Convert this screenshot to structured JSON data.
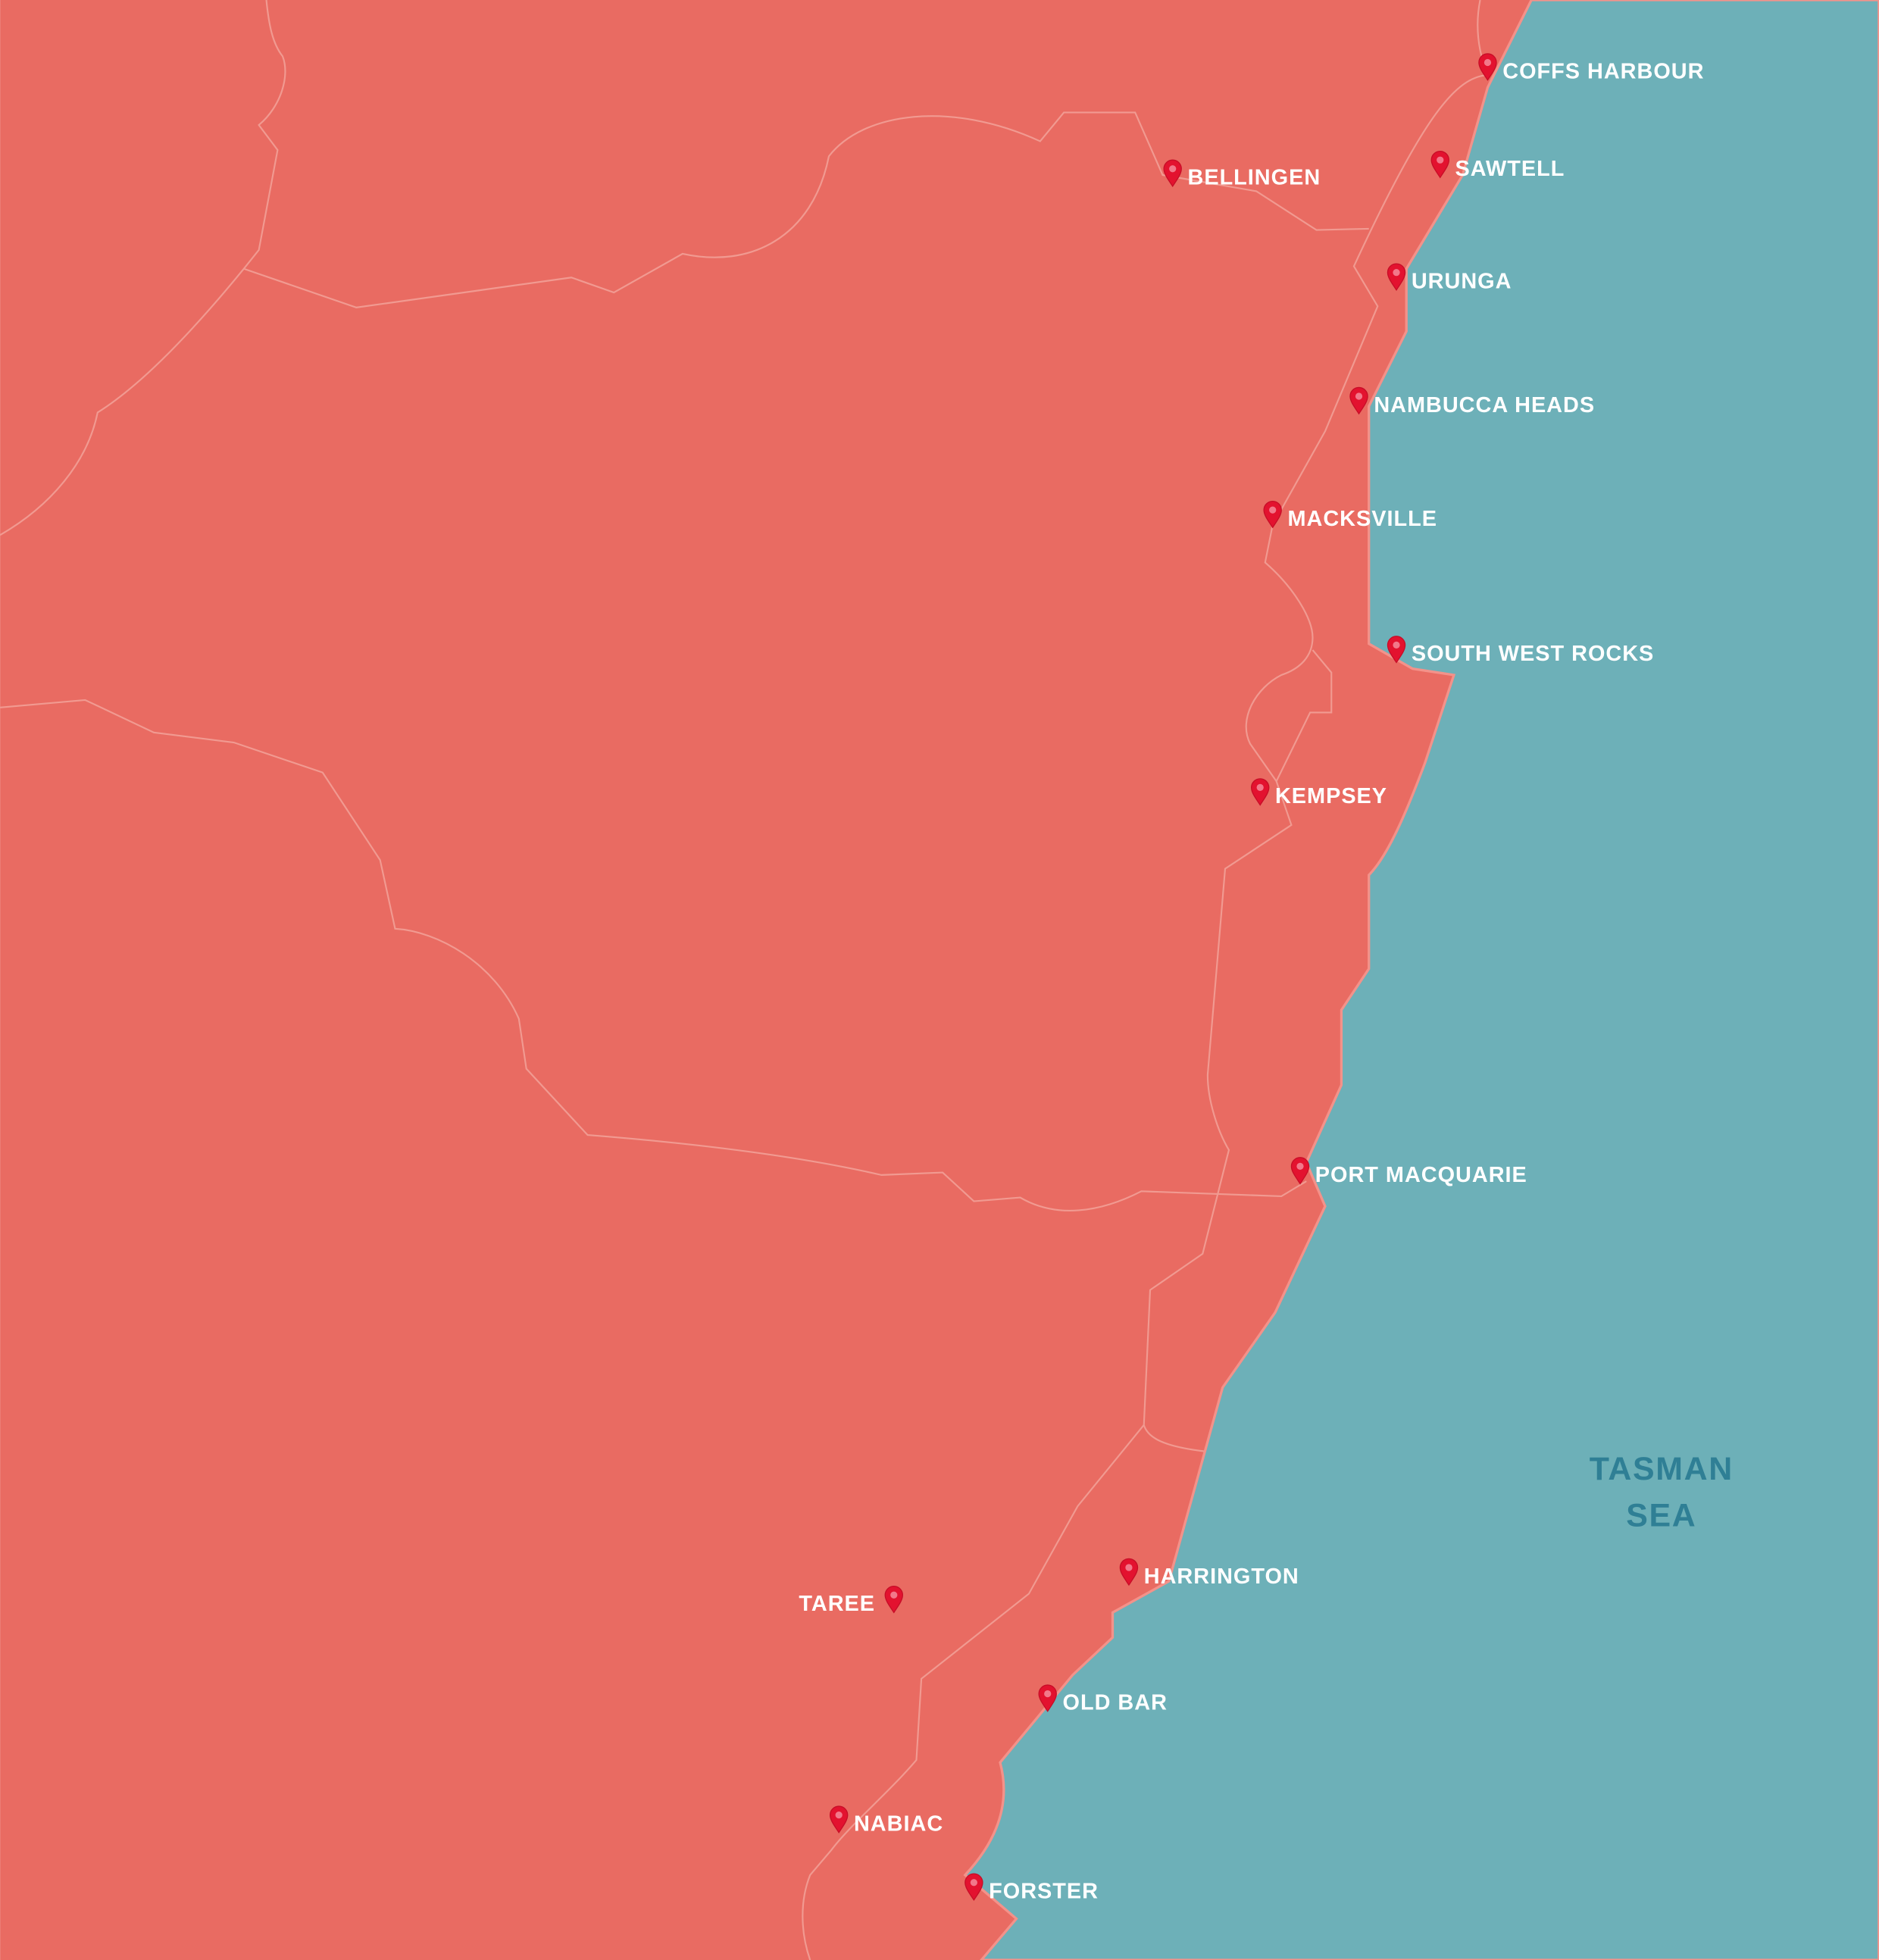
{
  "places": [
    {
      "name": "COFFS HARBOUR"
    },
    {
      "name": "BELLINGEN"
    },
    {
      "name": "SAWTELL"
    },
    {
      "name": "URUNGA"
    },
    {
      "name": "NAMBUCCA HEADS"
    },
    {
      "name": "MACKSVILLE"
    },
    {
      "name": "SOUTH WEST ROCKS"
    },
    {
      "name": "KEMPSEY"
    },
    {
      "name": "PORT MACQUARIE"
    },
    {
      "name": "HARRINGTON"
    },
    {
      "name": "TAREE"
    },
    {
      "name": "OLD BAR"
    },
    {
      "name": "NABIAC"
    },
    {
      "name": "FORSTER"
    }
  ],
  "sea": {
    "label": [
      "TASMAN",
      "SEA"
    ]
  }
}
